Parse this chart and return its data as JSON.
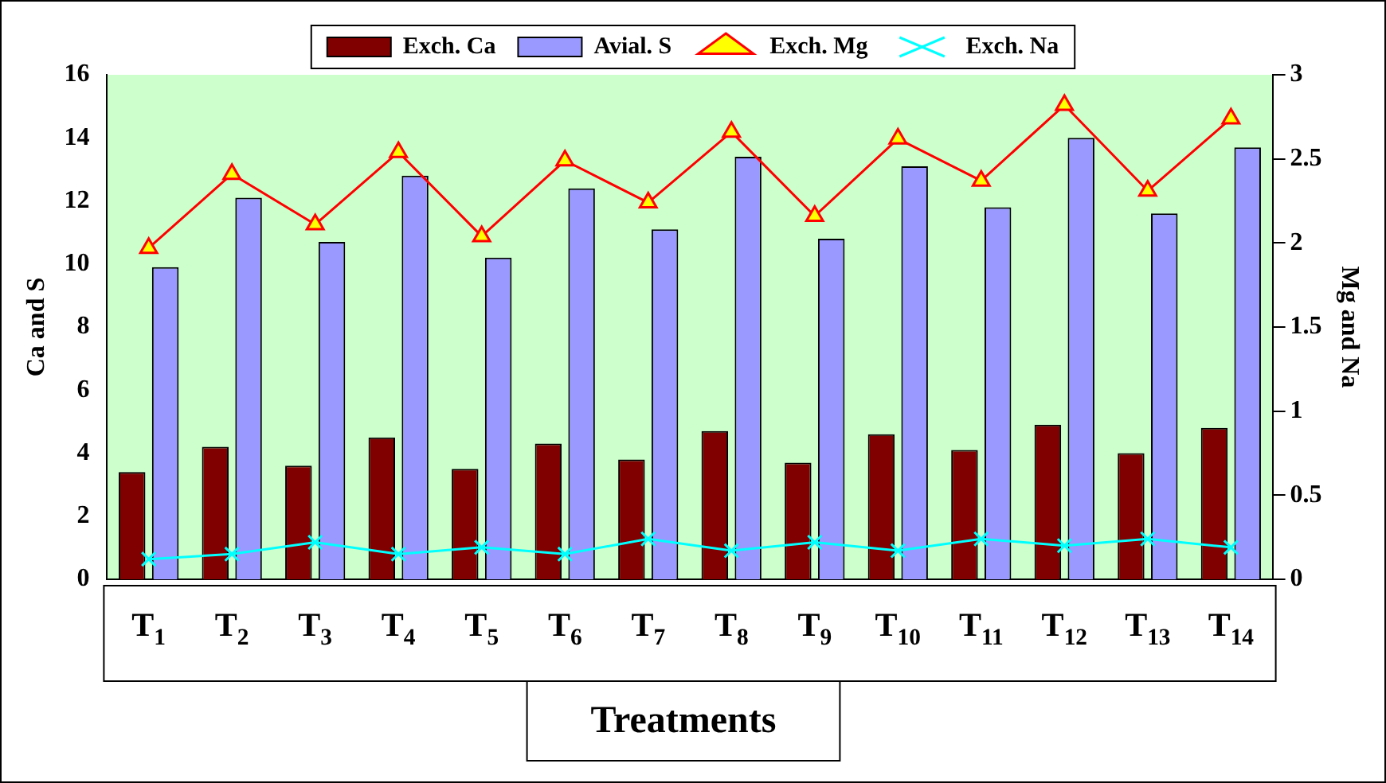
{
  "chart_data": {
    "type": "bar",
    "xlabel": "Treatments",
    "ylabel": "Ca and S",
    "y2label": "Mg and Na",
    "categories": [
      "T$_{1}$",
      "T$_{2}$",
      "T$_{3}$",
      "T$_{4}$",
      "T$_{5}$",
      "T$_{6}$",
      "T$_{7}$",
      "T$_{8}$",
      "T$_{9}$",
      "T$_{10}$",
      "T$_{11}$",
      "T$_{12}$",
      "T$_{13}$",
      "T$_{14}$"
    ],
    "series": [
      {
        "name": "Exch. Ca",
        "color": "#800000",
        "values": [
          3.4,
          4.2,
          3.6,
          4.5,
          3.5,
          4.3,
          3.8,
          4.7,
          3.7,
          4.6,
          4.1,
          4.9,
          4.0,
          4.8
        ]
      },
      {
        "name": "Avial. S",
        "color": "#9999ff",
        "values": [
          9.9,
          12.1,
          10.7,
          12.8,
          10.2,
          12.4,
          11.1,
          13.4,
          10.8,
          13.1,
          11.8,
          14.0,
          11.6,
          13.7
        ]
      },
      {
        "name": "Exch. Mg",
        "type": "line",
        "axis": "y2",
        "color": "#ff0000",
        "marker": "triangle",
        "values": [
          1.97,
          2.41,
          2.11,
          2.54,
          2.04,
          2.49,
          2.24,
          2.66,
          2.16,
          2.62,
          2.37,
          2.82,
          2.31,
          2.74
        ]
      },
      {
        "name": "Exch. Na",
        "type": "line",
        "axis": "y2",
        "color": "#00ffff",
        "marker": "cross",
        "values": [
          0.12,
          0.15,
          0.22,
          0.15,
          0.19,
          0.15,
          0.24,
          0.17,
          0.22,
          0.17,
          0.24,
          0.2,
          0.24,
          0.19
        ]
      }
    ],
    "ylim": [
      0,
      16
    ],
    "yticks": [
      0,
      2,
      4,
      6,
      8,
      10,
      12,
      14,
      16
    ],
    "y2lim": [
      0,
      3
    ],
    "y2ticks": [
      0,
      0.5,
      1,
      1.5,
      2,
      2.5,
      3
    ],
    "grid": false,
    "legend": "top"
  }
}
